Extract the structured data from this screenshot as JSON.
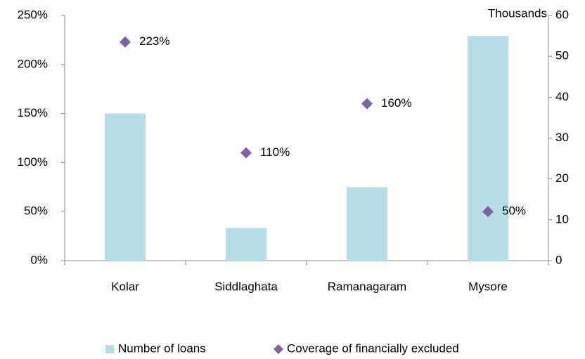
{
  "chart_data": {
    "type": "combo",
    "categories": [
      "Kolar",
      "Siddlaghata",
      "Ramanagaram",
      "Mysore"
    ],
    "series": [
      {
        "name": "Number of loans",
        "type": "bar",
        "axis": "y2",
        "color": "#b7dde8",
        "values": [
          36,
          8,
          18,
          55
        ]
      },
      {
        "name": "Coverage of financially excluded",
        "type": "scatter",
        "color": "#8064a2",
        "values": [
          223,
          110,
          160,
          50
        ],
        "value_labels": [
          "223%",
          "110%",
          "160%",
          "50%"
        ]
      }
    ],
    "ylim": [
      0,
      250
    ],
    "yticks": [
      {
        "value": 0,
        "label": "0%"
      },
      {
        "value": 50,
        "label": "50%"
      },
      {
        "value": 100,
        "label": "100%"
      },
      {
        "value": 150,
        "label": "150%"
      },
      {
        "value": 200,
        "label": "200%"
      },
      {
        "value": 250,
        "label": "250%"
      }
    ],
    "y2lim": [
      0,
      60
    ],
    "y2ticks": [
      0,
      10,
      20,
      30,
      40,
      50,
      60
    ],
    "y2label": "Thousands",
    "legend": "bottom",
    "grid": false
  }
}
